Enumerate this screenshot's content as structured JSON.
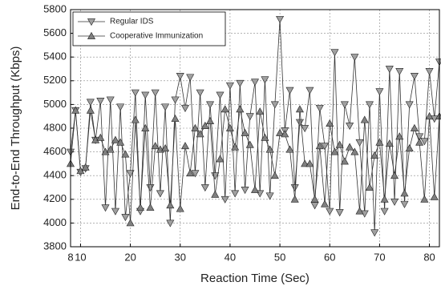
{
  "chart_data": {
    "type": "line",
    "x_label": "Reaction Time (Sec)",
    "y_label": "End-to-End Throughput (Kbps)",
    "x": [
      8,
      9,
      10,
      11,
      12,
      13,
      14,
      15,
      16,
      17,
      18,
      19,
      20,
      21,
      22,
      23,
      24,
      25,
      26,
      27,
      28,
      29,
      30,
      31,
      32,
      33,
      34,
      35,
      36,
      37,
      38,
      39,
      40,
      41,
      42,
      43,
      44,
      45,
      46,
      47,
      48,
      49,
      50,
      51,
      52,
      53,
      54,
      55,
      56,
      57,
      58,
      59,
      60,
      61,
      62,
      63,
      64,
      65,
      66,
      67,
      68,
      69,
      70,
      71,
      72,
      73,
      74,
      75,
      76,
      77,
      78,
      79,
      80,
      81,
      82
    ],
    "series": [
      {
        "name": "Regular IDS",
        "color": "#a0a0a0",
        "marker": "triangle-down",
        "values": [
          4600,
          4950,
          4430,
          4460,
          5020,
          4700,
          5030,
          4130,
          5040,
          4100,
          4980,
          4050,
          4420,
          5100,
          4100,
          5080,
          4300,
          5100,
          4250,
          4980,
          4000,
          5040,
          5240,
          4970,
          5230,
          4420,
          5100,
          4300,
          5000,
          4400,
          5080,
          4200,
          5160,
          4250,
          5180,
          4280,
          4900,
          5190,
          4250,
          5210,
          4230,
          5000,
          5720,
          4780,
          5120,
          4300,
          4850,
          4800,
          5120,
          4150,
          4970,
          4650,
          4100,
          5440,
          4090,
          5000,
          4820,
          5400,
          4680,
          4080,
          5000,
          3920,
          5110,
          4100,
          5300,
          4180,
          5280,
          4160,
          5000,
          5240,
          4730,
          4690,
          5280,
          4880,
          5360
        ]
      },
      {
        "name": "Cooperative Immunization",
        "color": "#808080",
        "marker": "triangle-up",
        "values": [
          4500,
          4950,
          4440,
          4470,
          4950,
          4700,
          4720,
          4600,
          4620,
          4700,
          4680,
          4580,
          4000,
          4870,
          4130,
          4800,
          4130,
          4650,
          4620,
          4630,
          4150,
          4880,
          4120,
          4650,
          4420,
          4800,
          4750,
          4820,
          4860,
          4240,
          4540,
          4960,
          4800,
          4640,
          4960,
          4760,
          4660,
          4280,
          4940,
          4720,
          4620,
          4400,
          4760,
          4750,
          4620,
          4200,
          4960,
          4500,
          4500,
          4200,
          4650,
          4160,
          4840,
          4600,
          4660,
          4520,
          4640,
          4600,
          4100,
          4870,
          4300,
          4570,
          4680,
          4200,
          4670,
          4400,
          4730,
          4250,
          4630,
          4800,
          4680,
          4200,
          4900,
          4220,
          4900
        ]
      }
    ],
    "xlim": [
      8,
      82
    ],
    "xticks": [
      8,
      10,
      20,
      30,
      40,
      50,
      60,
      70,
      80
    ],
    "ylim": [
      3800,
      5800
    ],
    "yticks": [
      3800,
      4000,
      4200,
      4400,
      4600,
      4800,
      5000,
      5200,
      5400,
      5600,
      5800
    ],
    "grid": true,
    "legend": "upper left"
  }
}
